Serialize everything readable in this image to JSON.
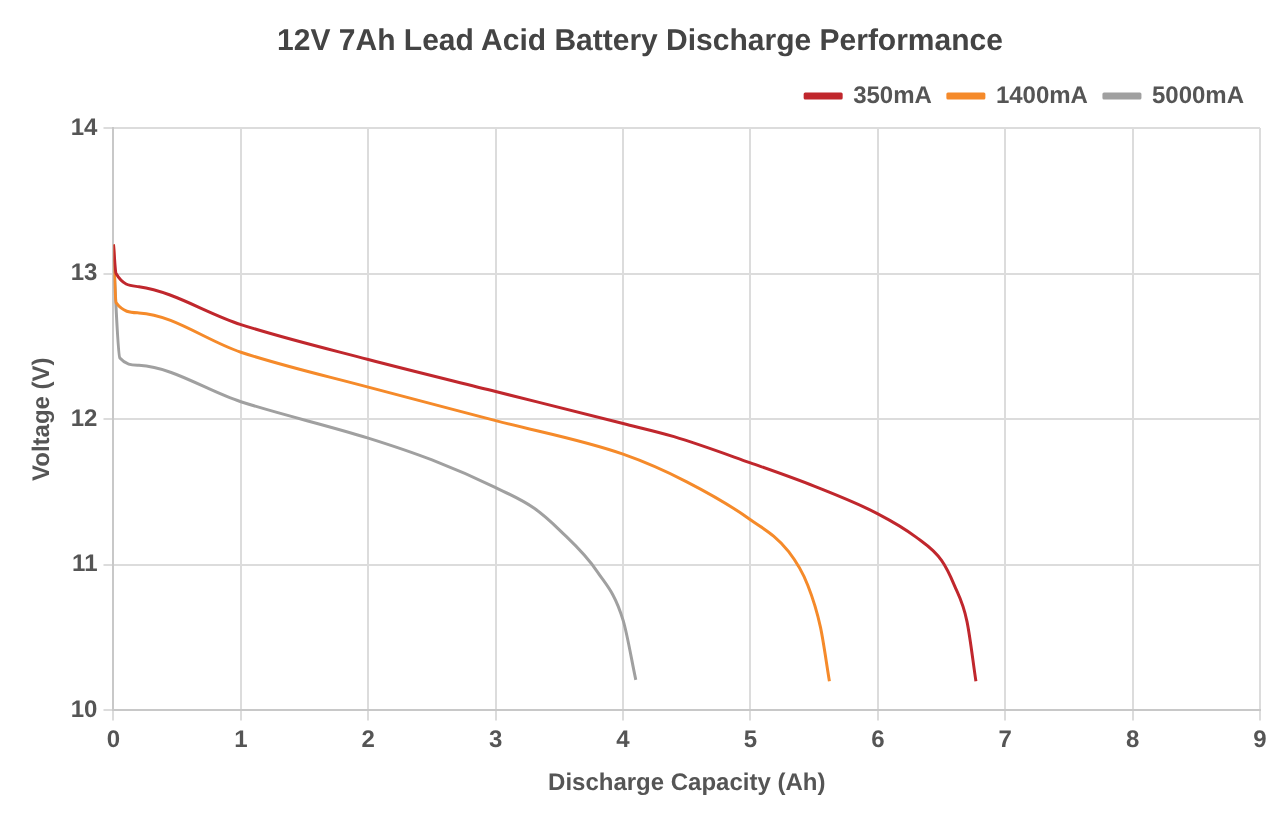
{
  "chart_data": {
    "type": "line",
    "title": "12V 7Ah Lead Acid Battery Discharge Performance",
    "xlabel": "Discharge Capacity (Ah)",
    "ylabel": "Voltage (V)",
    "xlim": [
      0,
      9
    ],
    "xticks": [
      0,
      1,
      2,
      3,
      4,
      5,
      6,
      7,
      8,
      9
    ],
    "ylim": [
      10,
      14
    ],
    "yticks": [
      10,
      11,
      12,
      13,
      14
    ],
    "grid": true,
    "legend": "top right",
    "marker": "none",
    "line_style": "solid",
    "series": [
      {
        "name": "350mA",
        "color": "#c0272d",
        "x": [
          0,
          0.02,
          0.2,
          1,
          2,
          3,
          4,
          4.4,
          5,
          5.5,
          6,
          6.3,
          6.5,
          6.6,
          6.7,
          6.77
        ],
        "values": [
          13.2,
          13.0,
          12.91,
          12.65,
          12.41,
          12.19,
          11.97,
          11.88,
          11.7,
          11.54,
          11.35,
          11.19,
          11.03,
          10.86,
          10.61,
          10.2
        ]
      },
      {
        "name": "1400mA",
        "color": "#f58a2a",
        "x": [
          0,
          0.02,
          0.2,
          1,
          2,
          3,
          4,
          4.5,
          5,
          5.3,
          5.45,
          5.55,
          5.62
        ],
        "values": [
          13.2,
          12.8,
          12.73,
          12.46,
          12.22,
          11.99,
          11.76,
          11.57,
          11.31,
          11.09,
          10.86,
          10.57,
          10.2
        ]
      },
      {
        "name": "5000mA",
        "color": "#a0a0a0",
        "x": [
          0,
          0.05,
          0.2,
          1,
          2,
          2.5,
          3,
          3.3,
          3.5,
          3.8,
          4,
          4.1
        ],
        "values": [
          13.1,
          12.42,
          12.37,
          12.12,
          11.87,
          11.72,
          11.53,
          11.39,
          11.24,
          10.95,
          10.62,
          10.21
        ]
      }
    ]
  }
}
